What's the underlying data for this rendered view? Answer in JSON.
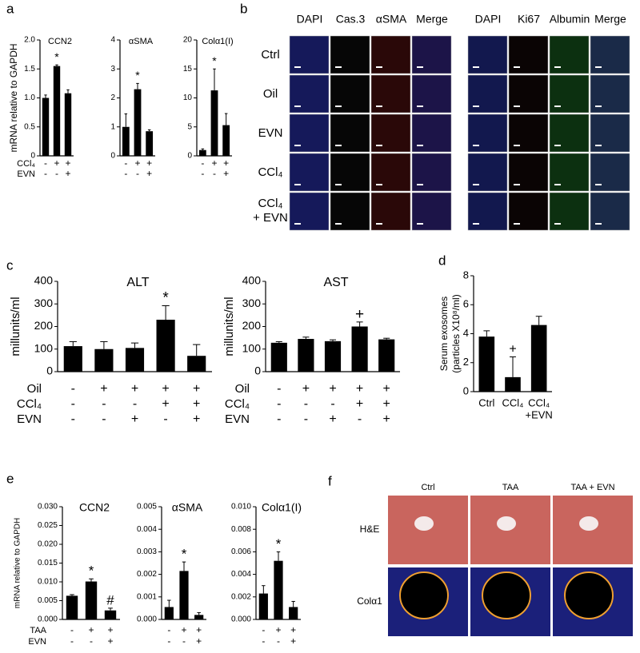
{
  "chart_data": [
    {
      "type": "bar",
      "title": "CCN2",
      "ylabel": "mRNA relative to GAPDH",
      "color": "#000000",
      "ylim": [
        0,
        2
      ],
      "yticks": [
        0,
        0.5,
        {
          "value": 1,
          "label": "1.0"
        },
        1.5,
        {
          "value": 2,
          "label": "2.0"
        }
      ],
      "values": [
        1.0,
        1.55,
        1.08
      ],
      "errors": [
        0.05,
        0.02,
        0.06
      ],
      "annotations": [
        {
          "index": 1,
          "text": "*"
        }
      ],
      "conditions": [
        {
          "name": "CCl₄",
          "values": [
            "-",
            "+",
            "+"
          ]
        },
        {
          "name": "EVN",
          "values": [
            "-",
            "-",
            "+"
          ]
        }
      ]
    },
    {
      "type": "bar",
      "title": "αSMA",
      "color": "#000000",
      "ylim": [
        0,
        4
      ],
      "yticks": [
        0,
        1,
        2,
        3,
        4
      ],
      "values": [
        1.0,
        2.3,
        0.85
      ],
      "errors": [
        0.45,
        0.2,
        0.05
      ],
      "annotations": [
        {
          "index": 1,
          "text": "*"
        }
      ],
      "conditions": [
        {
          "values": [
            "-",
            "+",
            "+"
          ]
        },
        {
          "values": [
            "-",
            "-",
            "+"
          ]
        }
      ]
    },
    {
      "type": "bar",
      "title": "Colα1(I)",
      "color": "#000000",
      "ylim": [
        0,
        20
      ],
      "yticks": [
        0,
        5,
        10,
        15,
        20
      ],
      "values": [
        1.0,
        11.3,
        5.3
      ],
      "errors": [
        0.2,
        3.7,
        2.0
      ],
      "annotations": [
        {
          "index": 1,
          "text": "*"
        }
      ],
      "conditions": [
        {
          "values": [
            "-",
            "+",
            "+"
          ]
        },
        {
          "values": [
            "-",
            "-",
            "+"
          ]
        }
      ]
    },
    {
      "type": "bar",
      "title": "ALT",
      "ylabel": "millunits/ml",
      "color": "#000000",
      "ylim": [
        0,
        400
      ],
      "yticks": [
        0,
        100,
        200,
        300,
        400
      ],
      "values": [
        113,
        100,
        105,
        230,
        70
      ],
      "errors": [
        20,
        33,
        22,
        62,
        50
      ],
      "annotations": [
        {
          "index": 3,
          "text": "*"
        }
      ],
      "conditions": [
        {
          "name": "Oil",
          "values": [
            "-",
            "+",
            "+",
            "+",
            "+"
          ]
        },
        {
          "name": "CCl₄",
          "values": [
            "-",
            "-",
            "-",
            "+",
            "+"
          ]
        },
        {
          "name": "EVN",
          "values": [
            "-",
            "-",
            "+",
            "-",
            "+"
          ]
        }
      ]
    },
    {
      "type": "bar",
      "title": "AST",
      "ylabel": "millunits/ml",
      "color": "#000000",
      "ylim": [
        0,
        400
      ],
      "yticks": [
        0,
        100,
        200,
        300,
        400
      ],
      "values": [
        128,
        145,
        135,
        200,
        143
      ],
      "errors": [
        5,
        8,
        6,
        20,
        5
      ],
      "annotations": [
        {
          "index": 3,
          "text": "+"
        }
      ],
      "conditions": [
        {
          "name": "Oil",
          "values": [
            "-",
            "+",
            "+",
            "+",
            "+"
          ]
        },
        {
          "name": "CCl₄",
          "values": [
            "-",
            "-",
            "-",
            "+",
            "+"
          ]
        },
        {
          "name": "EVN",
          "values": [
            "-",
            "-",
            "+",
            "-",
            "+"
          ]
        }
      ]
    },
    {
      "type": "bar",
      "ylabel": [
        "Serum exosomes",
        "(particles X10⁸/ml)"
      ],
      "color": "#000000",
      "ylim": [
        0,
        8
      ],
      "yticks": [
        0,
        2,
        4,
        6,
        8
      ],
      "categories": [
        "Ctrl",
        "CCl₄",
        [
          "CCl₄",
          "+EVN"
        ]
      ],
      "values": [
        3.8,
        1.0,
        4.6
      ],
      "errors": [
        0.4,
        1.4,
        0.6
      ],
      "annotations": [
        {
          "index": 1,
          "text": "+"
        }
      ]
    },
    {
      "type": "bar",
      "title": "CCN2",
      "ylabel": "mRNA relative to GAPDH",
      "color": "#000000",
      "ylim": [
        0,
        0.03
      ],
      "yticks": [
        {
          "value": 0,
          "label": "0.000"
        },
        0.005,
        {
          "value": 0.01,
          "label": "0.010"
        },
        0.015,
        {
          "value": 0.02,
          "label": "0.020"
        },
        0.025,
        {
          "value": 0.03,
          "label": "0.030"
        }
      ],
      "values": [
        0.0063,
        0.0101,
        0.0024
      ],
      "errors": [
        0.0003,
        0.0007,
        0.0006
      ],
      "annotations": [
        {
          "index": 1,
          "text": "*"
        },
        {
          "index": 2,
          "text": "#"
        }
      ],
      "conditions": [
        {
          "name": "TAA",
          "values": [
            "-",
            "+",
            "+"
          ]
        },
        {
          "name": "EVN",
          "values": [
            "-",
            "-",
            "+"
          ]
        }
      ]
    },
    {
      "type": "bar",
      "title": "αSMA",
      "color": "#000000",
      "ylim": [
        0,
        0.005
      ],
      "yticks": [
        {
          "value": 0,
          "label": "0.000"
        },
        0.001,
        0.002,
        0.003,
        0.004,
        0.005
      ],
      "values": [
        0.00055,
        0.00215,
        0.0002
      ],
      "errors": [
        0.0003,
        0.0004,
        0.0001
      ],
      "annotations": [
        {
          "index": 1,
          "text": "*"
        }
      ],
      "conditions": [
        {
          "values": [
            "-",
            "+",
            "+"
          ]
        },
        {
          "values": [
            "-",
            "-",
            "+"
          ]
        }
      ]
    },
    {
      "type": "bar",
      "title": "Colα1(I)",
      "color": "#000000",
      "ylim": [
        0,
        0.01
      ],
      "yticks": [
        {
          "value": 0,
          "label": "0.000"
        },
        0.002,
        0.004,
        0.006,
        0.008,
        {
          "value": 0.01,
          "label": "0.010"
        }
      ],
      "values": [
        0.0023,
        0.0052,
        0.0011
      ],
      "errors": [
        0.0007,
        0.0008,
        0.0005
      ],
      "annotations": [
        {
          "index": 1,
          "text": "*"
        }
      ],
      "conditions": [
        {
          "values": [
            "-",
            "+",
            "+"
          ]
        },
        {
          "values": [
            "-",
            "-",
            "+"
          ]
        }
      ]
    }
  ],
  "panel_letters": [
    "a",
    "b",
    "c",
    "d",
    "e",
    "f"
  ],
  "panel_b": {
    "left_columns": [
      "DAPI",
      "Cas.3",
      "αSMA",
      "Merge"
    ],
    "right_columns": [
      "DAPI",
      "Ki67",
      "Albumin",
      "Merge"
    ],
    "rows": [
      "Ctrl",
      "Oil",
      "EVN",
      "CCl₄",
      [
        "CCl₄",
        "+ EVN"
      ]
    ]
  },
  "panel_f": {
    "columns": [
      "Ctrl",
      "TAA",
      "TAA + EVN"
    ],
    "rows": [
      "H&E",
      "Colα1"
    ]
  }
}
